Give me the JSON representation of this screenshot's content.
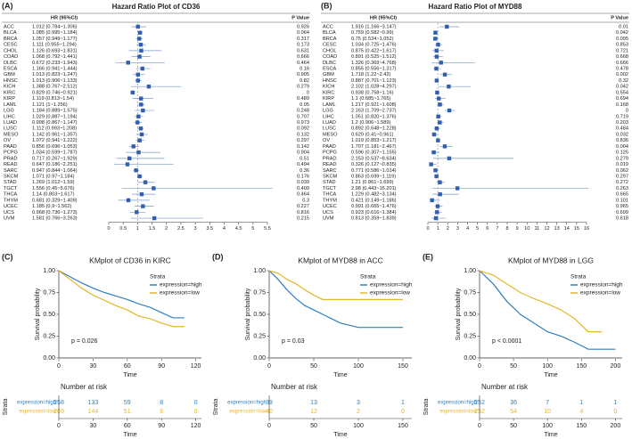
{
  "chart_data": [
    {
      "type": "forest",
      "panel_label": "(A)",
      "title": "Hazard Ratio Plot of CD36",
      "header_hr": "HR (95%CI)",
      "header_p": "P Value",
      "color": "#2f5fae",
      "ref_line": 1,
      "categories": [
        "ACC",
        "BLCA",
        "BRCA",
        "CESC",
        "CHOL",
        "COAD",
        "DLBC",
        "ESCA",
        "GBM",
        "HNSC",
        "KICH",
        "KIRC",
        "KIRP",
        "LAML",
        "LGG",
        "LIHC",
        "LUAD",
        "LUSC",
        "MESO",
        "OV",
        "PAAD",
        "PCPG",
        "PRAD",
        "READ",
        "SARC",
        "SKCM",
        "STAD",
        "TGCT",
        "THCA",
        "THYM",
        "UCEC",
        "UCS",
        "UVM"
      ],
      "hr_text": [
        "1.012 (0.784~1.306)",
        "1.085 (0.995~1.184)",
        "1.057 (0.949~1.177)",
        "1.111 (0.955~1.294)",
        "1.126 (0.693~1.831)",
        "1.068 (0.792~1.441)",
        "0.672 (0.233~1.943)",
        "1.166 (0.941~1.444)",
        "1.013 (0.823~1.247)",
        "1.013 (0.906~1.133)",
        "1.388 (0.767~2.512)",
        "0.829 (0.746~0.921)",
        "1.119 (0.813~1.54)",
        "1.121 (1~1.256)",
        "1.184 (0.889~1.575)",
        "1.029 (0.887~1.194)",
        "0.998 (0.867~1.147)",
        "1.112 (0.993~1.208)",
        "1.142 (0.961~1.357)",
        "1.072 (0.941~1.222)",
        "0.856 (0.696~1.053)",
        "1.034 (0.599~1.787)",
        "0.717 (0.267~1.929)",
        "0.647 (0.186~2.251)",
        "0.947 (0.844~1.064)",
        "1.071 (0.97~1.184)",
        "1.269 (1.012~1.59)",
        "1.556 (0.45~5.676)",
        "1.14 (0.803~1.617)",
        "0.681 (0.329~1.409)",
        "1.185 (0.9~1.562)",
        "0.968 (0.736~1.273)",
        "1.581 (0.766~3.263)"
      ],
      "values": [
        1.012,
        1.085,
        1.057,
        1.111,
        1.126,
        1.068,
        0.672,
        1.166,
        1.013,
        1.013,
        1.388,
        0.829,
        1.119,
        1.121,
        1.184,
        1.029,
        0.998,
        1.112,
        1.142,
        1.072,
        0.856,
        1.034,
        0.717,
        0.647,
        0.947,
        1.071,
        1.269,
        1.556,
        1.14,
        0.681,
        1.185,
        0.968,
        1.581
      ],
      "ci_low": [
        0.784,
        0.995,
        0.949,
        0.955,
        0.693,
        0.792,
        0.233,
        0.941,
        0.823,
        0.906,
        0.767,
        0.746,
        0.813,
        1,
        0.889,
        0.887,
        0.867,
        0.993,
        0.961,
        0.941,
        0.696,
        0.599,
        0.267,
        0.186,
        0.844,
        0.97,
        1.012,
        0.45,
        0.803,
        0.329,
        0.9,
        0.736,
        0.766
      ],
      "ci_high": [
        1.306,
        1.184,
        1.177,
        1.294,
        1.831,
        1.441,
        1.943,
        1.444,
        1.247,
        1.133,
        2.512,
        0.921,
        1.54,
        1.256,
        1.575,
        1.194,
        1.147,
        1.208,
        1.357,
        1.222,
        1.053,
        1.787,
        1.929,
        2.251,
        1.064,
        1.184,
        1.59,
        5.676,
        1.617,
        1.409,
        1.562,
        1.273,
        3.263
      ],
      "p_values": [
        0.926,
        0.064,
        0.317,
        0.173,
        0.631,
        0.666,
        0.464,
        0.16,
        0.905,
        0.82,
        0.279,
        0,
        0.489,
        0.05,
        0.248,
        0.707,
        0.973,
        0.092,
        0.132,
        0.297,
        0.142,
        0.904,
        0.51,
        0.494,
        0.36,
        0.176,
        0.039,
        0.409,
        0.464,
        0.3,
        0.227,
        0.816,
        0.215
      ],
      "xlim": [
        0,
        5.5
      ],
      "xticks": [
        0,
        0.5,
        1,
        1.5,
        2,
        2.5,
        3,
        3.5,
        4,
        4.5,
        5,
        5.5
      ]
    },
    {
      "type": "forest",
      "panel_label": "(B)",
      "title": "Hazard Ratio Plot of MYD88",
      "header_hr": "HR (95%CI)",
      "header_p": "P Value",
      "color": "#2f5fae",
      "ref_line": 1,
      "categories": [
        "ACC",
        "BLCA",
        "BRCA",
        "CESC",
        "CHOL",
        "COAD",
        "DLBC",
        "ESCA",
        "GBM",
        "HNSC",
        "KICH",
        "KIRC",
        "KIRP",
        "LAML",
        "LGG",
        "LIHC",
        "LUAD",
        "LUSC",
        "MESO",
        "OV",
        "PAAD",
        "PCPG",
        "PRAD",
        "READ",
        "SARC",
        "SKCM",
        "STAD",
        "TGCT",
        "THCA",
        "THYM",
        "UCEC",
        "UCS",
        "UVM"
      ],
      "hr_text": [
        "1.916 (1.166~3.147)",
        "0.759 (0.582~0.99)",
        "0.75 (0.534~1.052)",
        "1.034 (0.725~1.476)",
        "0.875 (0.422~1.617)",
        "0.891 (0.525~1.512)",
        "1.326 (0.369~4.768)",
        "0.855 (0.556~1.317)",
        "1.718 (1.22~2.42)",
        "0.887 (0.701~1.123)",
        "2.102 (1.028~4.297)",
        "0.938 (0.758~1.16)",
        "1.1 (0.685~1.765)",
        "1.217 (0.921~1.608)",
        "2.163 (1.709~2.737)",
        "1.051 (0.820~1.376)",
        "1.2 (0.906~1.589)",
        "0.892 (0.648~1.228)",
        "0.629 (0.41~0.961)",
        "1.019 (0.853~1.217)",
        "1.707 (1.181~2.467)",
        "0.596 (0.307~1.155)",
        "2.153 (0.537~8.634)",
        "0.326 (0.127~0.835)",
        "0.771 (0.586~1.014)",
        "0.863 (0.699~1.119)",
        "1.21 (0.861~1.699)",
        "2.98 (0.443~16.201)",
        "1.229 (0.482~3.134)",
        "0.421 (0.149~1.186)",
        "0.991 (0.665~1.476)",
        "0.923 (0.616~1.384)",
        "0.813 (0.359~1.839)"
      ],
      "values": [
        1.916,
        0.759,
        0.75,
        1.034,
        0.875,
        0.891,
        1.326,
        0.855,
        1.718,
        0.887,
        2.102,
        0.938,
        1.1,
        1.217,
        2.163,
        1.051,
        1.2,
        0.892,
        0.629,
        1.019,
        1.707,
        0.596,
        2.153,
        0.326,
        0.771,
        0.863,
        1.21,
        2.98,
        1.229,
        0.421,
        0.991,
        0.923,
        0.813
      ],
      "ci_low": [
        1.166,
        0.582,
        0.534,
        0.725,
        0.422,
        0.525,
        0.369,
        0.556,
        1.22,
        0.701,
        1.028,
        0.758,
        0.685,
        0.921,
        1.709,
        0.82,
        0.906,
        0.648,
        0.41,
        0.853,
        1.181,
        0.307,
        0.537,
        0.127,
        0.586,
        0.699,
        0.861,
        0.443,
        0.482,
        0.149,
        0.665,
        0.616,
        0.359
      ],
      "ci_high": [
        3.147,
        0.99,
        1.052,
        1.476,
        1.617,
        1.512,
        4.768,
        1.317,
        2.42,
        1.123,
        4.297,
        1.16,
        1.765,
        1.608,
        2.737,
        1.376,
        1.589,
        1.228,
        0.961,
        1.217,
        2.467,
        1.155,
        8.634,
        0.835,
        1.014,
        1.119,
        1.699,
        16.201,
        3.134,
        1.186,
        1.476,
        1.384,
        1.839
      ],
      "p_values": [
        0.01,
        0.042,
        0.095,
        0.853,
        0.721,
        0.668,
        0.666,
        0.478,
        0.002,
        0.32,
        0.042,
        0.554,
        0.694,
        0.168,
        0,
        0.719,
        0.203,
        0.484,
        0.032,
        0.836,
        0.004,
        0.125,
        0.279,
        0.019,
        0.062,
        0.297,
        0.272,
        0.263,
        0.665,
        0.101,
        0.965,
        0.699,
        0.618
      ],
      "xlim": [
        0,
        16
      ],
      "xticks": [
        0,
        1,
        2,
        3,
        4,
        5,
        6,
        7,
        8,
        9,
        10,
        11,
        12,
        13,
        14,
        15,
        16
      ]
    },
    {
      "type": "km",
      "panel_label": "(C)",
      "title": "KMplot of CD36 in KIRC",
      "x_label": "Time",
      "y_label": "Survival probability",
      "p_text": "p = 0.026",
      "legend_title": "Strata",
      "risk_title": "Number at risk",
      "risk_label": "Strata",
      "xlim": [
        0,
        125
      ],
      "xticks": [
        0,
        30,
        60,
        90,
        120
      ],
      "ylim": [
        0,
        1
      ],
      "yticks": [
        {
          "value": 0,
          "label": "0.00"
        },
        {
          "value": 0.25,
          "label": "0.25"
        },
        {
          "value": 0.5,
          "label": "0.50"
        },
        {
          "value": 0.75,
          "label": "0.75"
        },
        {
          "value": 1,
          "label": "1.00"
        }
      ],
      "series": [
        {
          "name": "expression=high",
          "color": "#2f7fc1",
          "x": [
            0,
            10,
            20,
            30,
            40,
            50,
            60,
            70,
            80,
            90,
            100,
            110
          ],
          "values": [
            1,
            0.93,
            0.86,
            0.8,
            0.75,
            0.71,
            0.67,
            0.62,
            0.58,
            0.52,
            0.46,
            0.46
          ],
          "at_risk": [
            258,
            133,
            59,
            8,
            0
          ]
        },
        {
          "name": "expression=low",
          "color": "#e5b72b",
          "x": [
            0,
            10,
            20,
            30,
            40,
            50,
            60,
            70,
            80,
            90,
            100,
            110
          ],
          "values": [
            1,
            0.9,
            0.8,
            0.72,
            0.66,
            0.6,
            0.55,
            0.48,
            0.45,
            0.4,
            0.36,
            0.36
          ],
          "at_risk": [
            269,
            144,
            51,
            6,
            0
          ]
        }
      ]
    },
    {
      "type": "km",
      "panel_label": "(D)",
      "title": "KMplot of MYD88 in ACC",
      "x_label": "Time",
      "y_label": "Survival probability",
      "p_text": "p = 0.03",
      "legend_title": "Strata",
      "risk_title": "Number at risk",
      "risk_label": "Strata",
      "xlim": [
        0,
        160
      ],
      "xticks": [
        0,
        50,
        100,
        150
      ],
      "ylim": [
        0,
        1
      ],
      "yticks": [
        {
          "value": 0,
          "label": "0.00"
        },
        {
          "value": 0.25,
          "label": "0.25"
        },
        {
          "value": 0.5,
          "label": "0.50"
        },
        {
          "value": 0.75,
          "label": "0.75"
        },
        {
          "value": 1,
          "label": "1.00"
        }
      ],
      "series": [
        {
          "name": "expression=high",
          "color": "#2f7fc1",
          "x": [
            0,
            10,
            20,
            30,
            40,
            50,
            60,
            70,
            80,
            100,
            120,
            150
          ],
          "values": [
            1,
            0.9,
            0.78,
            0.68,
            0.6,
            0.55,
            0.5,
            0.45,
            0.4,
            0.35,
            0.35,
            0.35
          ],
          "at_risk": [
            39,
            13,
            3,
            1
          ]
        },
        {
          "name": "expression=low",
          "color": "#e5b72b",
          "x": [
            0,
            10,
            20,
            30,
            40,
            50,
            60,
            80,
            100,
            150
          ],
          "values": [
            1,
            0.97,
            0.9,
            0.85,
            0.78,
            0.72,
            0.67,
            0.67,
            0.67,
            0.67
          ],
          "at_risk": [
            40,
            12,
            2,
            0
          ]
        }
      ]
    },
    {
      "type": "km",
      "panel_label": "(E)",
      "title": "KMplot of MYD88 in LGG",
      "x_label": "Time",
      "y_label": "Survival probability",
      "p_text": "p < 0.0001",
      "legend_title": "Strata",
      "risk_title": "Number at risk",
      "risk_label": "Strata",
      "xlim": [
        0,
        210
      ],
      "xticks": [
        0,
        50,
        100,
        150,
        200
      ],
      "ylim": [
        0,
        1
      ],
      "yticks": [
        {
          "value": 0,
          "label": "0.00"
        },
        {
          "value": 0.25,
          "label": "0.25"
        },
        {
          "value": 0.5,
          "label": "0.50"
        },
        {
          "value": 0.75,
          "label": "0.75"
        },
        {
          "value": 1,
          "label": "1.00"
        }
      ],
      "series": [
        {
          "name": "expression=high",
          "color": "#2f7fc1",
          "x": [
            0,
            20,
            40,
            60,
            80,
            100,
            120,
            140,
            160,
            180,
            200
          ],
          "values": [
            1,
            0.85,
            0.65,
            0.5,
            0.4,
            0.3,
            0.25,
            0.18,
            0.1,
            0.1,
            0.1
          ],
          "at_risk": [
            252,
            36,
            7,
            1,
            1
          ]
        },
        {
          "name": "expression=low",
          "color": "#e5b72b",
          "x": [
            0,
            20,
            40,
            60,
            80,
            100,
            120,
            140,
            160,
            180
          ],
          "values": [
            1,
            0.95,
            0.85,
            0.75,
            0.68,
            0.62,
            0.55,
            0.45,
            0.3,
            0.3
          ],
          "at_risk": [
            252,
            54,
            10,
            4,
            0
          ]
        }
      ]
    }
  ]
}
